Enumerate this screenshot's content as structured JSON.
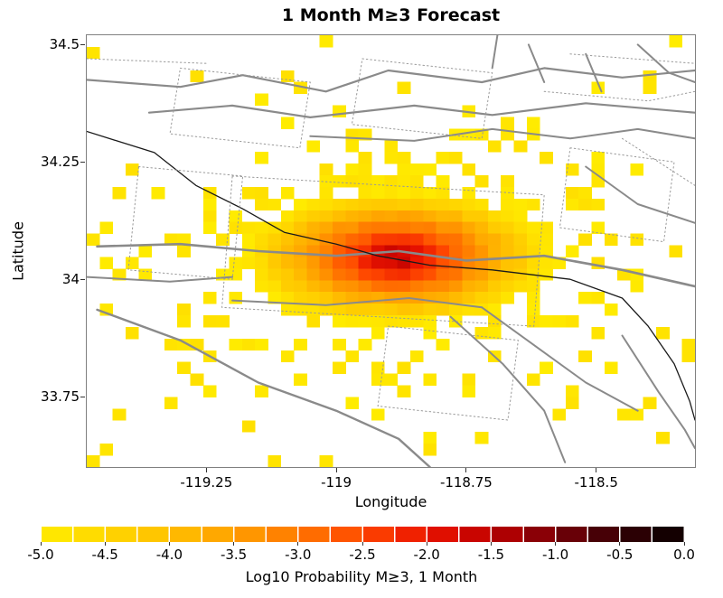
{
  "chart_data": {
    "type": "heatmap",
    "title": "1 Month M≥3 Forecast",
    "xlabel": "Longitude",
    "ylabel": "Latitude",
    "xlim": [
      -119.48,
      -118.31
    ],
    "ylim": [
      33.6,
      34.52
    ],
    "x_ticks": [
      -119.25,
      -119.0,
      -118.75,
      -118.5
    ],
    "x_tick_labels": [
      "-119.25",
      "-119",
      "-118.75",
      "-118.5"
    ],
    "y_ticks": [
      34.5,
      34.25,
      34.0,
      33.75
    ],
    "y_tick_labels": [
      "34.5",
      "34.25",
      "34",
      "33.75"
    ],
    "cell_deg": 0.025,
    "seed": 7,
    "vmin": -5,
    "vmax": 0,
    "hotspot": {
      "center_lon": -118.88,
      "center_lat": 34.045,
      "radius_lon": 0.3,
      "radius_lat": 0.145,
      "peak_log10p": -1.4,
      "falloff_range": 3.6
    },
    "scatter": {
      "radius_lon": 0.52,
      "radius_lat": 0.3,
      "base_p": 0.05,
      "halo_p": 0.55,
      "value_min": -5.0,
      "value_max": -4.7
    },
    "colormap": [
      {
        "v": -5.0,
        "c": [
          255,
          236,
          0
        ]
      },
      {
        "v": -4.5,
        "c": [
          255,
          215,
          0
        ]
      },
      {
        "v": -4.0,
        "c": [
          255,
          192,
          0
        ]
      },
      {
        "v": -3.5,
        "c": [
          255,
          160,
          0
        ]
      },
      {
        "v": -3.0,
        "c": [
          255,
          120,
          0
        ]
      },
      {
        "v": -2.5,
        "c": [
          255,
          72,
          0
        ]
      },
      {
        "v": -2.0,
        "c": [
          235,
          20,
          0
        ]
      },
      {
        "v": -1.5,
        "c": [
          190,
          0,
          0
        ]
      },
      {
        "v": -1.0,
        "c": [
          120,
          0,
          8
        ]
      },
      {
        "v": -0.5,
        "c": [
          55,
          0,
          5
        ]
      },
      {
        "v": 0.0,
        "c": [
          8,
          0,
          0
        ]
      }
    ],
    "colorbar": {
      "segments": 20,
      "vmin": -5,
      "vmax": 0,
      "ticks": [
        "-5.0",
        "-4.5",
        "-4.0",
        "-3.5",
        "-3.0",
        "-2.5",
        "-2.0",
        "-1.5",
        "-1.0",
        "-0.5",
        "0.0"
      ],
      "label": "Log10 Probability M≥3, 1 Month"
    },
    "map_lines": [
      {
        "style": "solid",
        "w": 2.2,
        "color": "#8a8a8a",
        "pts": [
          [
            -119.48,
            34.425
          ],
          [
            -119.3,
            34.41
          ],
          [
            -119.18,
            34.435
          ],
          [
            -119.02,
            34.4
          ],
          [
            -118.9,
            34.445
          ],
          [
            -118.72,
            34.42
          ],
          [
            -118.6,
            34.45
          ],
          [
            -118.45,
            34.43
          ],
          [
            -118.31,
            34.445
          ]
        ]
      },
      {
        "style": "solid",
        "w": 2.2,
        "color": "#8a8a8a",
        "pts": [
          [
            -119.36,
            34.355
          ],
          [
            -119.2,
            34.37
          ],
          [
            -119.05,
            34.345
          ],
          [
            -118.85,
            34.37
          ],
          [
            -118.7,
            34.35
          ],
          [
            -118.52,
            34.375
          ],
          [
            -118.31,
            34.355
          ]
        ]
      },
      {
        "style": "solid",
        "w": 2.0,
        "color": "#8a8a8a",
        "pts": [
          [
            -119.05,
            34.305
          ],
          [
            -118.85,
            34.295
          ],
          [
            -118.7,
            34.32
          ],
          [
            -118.55,
            34.3
          ],
          [
            -118.42,
            34.32
          ],
          [
            -118.31,
            34.3
          ]
        ]
      },
      {
        "style": "solid",
        "w": 2.6,
        "color": "#8a8a8a",
        "pts": [
          [
            -119.46,
            34.07
          ],
          [
            -119.3,
            34.075
          ],
          [
            -119.15,
            34.06
          ],
          [
            -119.0,
            34.05
          ],
          [
            -118.88,
            34.06
          ],
          [
            -118.75,
            34.04
          ],
          [
            -118.6,
            34.05
          ],
          [
            -118.45,
            34.02
          ],
          [
            -118.31,
            33.985
          ]
        ]
      },
      {
        "style": "solid",
        "w": 2.0,
        "color": "#8a8a8a",
        "pts": [
          [
            -119.48,
            34.005
          ],
          [
            -119.32,
            33.995
          ],
          [
            -119.2,
            34.005
          ]
        ]
      },
      {
        "style": "solid",
        "w": 2.0,
        "color": "#8a8a8a",
        "pts": [
          [
            -119.2,
            33.955
          ],
          [
            -119.02,
            33.945
          ],
          [
            -118.86,
            33.96
          ],
          [
            -118.72,
            33.94
          ]
        ]
      },
      {
        "style": "solid",
        "w": 2.4,
        "color": "#8a8a8a",
        "pts": [
          [
            -119.46,
            33.935
          ],
          [
            -119.3,
            33.87
          ],
          [
            -119.15,
            33.78
          ],
          [
            -119.0,
            33.72
          ],
          [
            -118.88,
            33.66
          ],
          [
            -118.82,
            33.6
          ]
        ]
      },
      {
        "style": "solid",
        "w": 2.0,
        "color": "#8a8a8a",
        "pts": [
          [
            -118.78,
            33.92
          ],
          [
            -118.68,
            33.82
          ],
          [
            -118.6,
            33.72
          ],
          [
            -118.56,
            33.61
          ]
        ]
      },
      {
        "style": "solid",
        "w": 2.0,
        "color": "#8a8a8a",
        "pts": [
          [
            -118.72,
            33.94
          ],
          [
            -118.62,
            33.86
          ],
          [
            -118.52,
            33.78
          ],
          [
            -118.42,
            33.72
          ]
        ]
      },
      {
        "style": "solid",
        "w": 2.0,
        "color": "#8a8a8a",
        "pts": [
          [
            -118.45,
            33.88
          ],
          [
            -118.38,
            33.76
          ],
          [
            -118.33,
            33.68
          ],
          [
            -118.31,
            33.64
          ]
        ]
      },
      {
        "style": "solid",
        "w": 2.0,
        "color": "#8a8a8a",
        "pts": [
          [
            -118.52,
            34.24
          ],
          [
            -118.42,
            34.16
          ],
          [
            -118.31,
            34.12
          ]
        ]
      },
      {
        "style": "solid",
        "w": 2.0,
        "color": "#8a8a8a",
        "pts": [
          [
            -118.63,
            34.5
          ],
          [
            -118.6,
            34.42
          ]
        ]
      },
      {
        "style": "solid",
        "w": 2.0,
        "color": "#8a8a8a",
        "pts": [
          [
            -118.52,
            34.48
          ],
          [
            -118.49,
            34.4
          ]
        ]
      },
      {
        "style": "solid",
        "w": 2.0,
        "color": "#8a8a8a",
        "pts": [
          [
            -118.42,
            34.5
          ],
          [
            -118.36,
            34.44
          ],
          [
            -118.31,
            34.42
          ]
        ]
      },
      {
        "style": "solid",
        "w": 2.0,
        "color": "#8a8a8a",
        "pts": [
          [
            -118.69,
            34.52
          ],
          [
            -118.7,
            34.45
          ]
        ]
      },
      {
        "style": "solid",
        "w": 1.3,
        "color": "#1a1a1a",
        "pts": [
          [
            -119.48,
            34.315
          ],
          [
            -119.35,
            34.27
          ],
          [
            -119.27,
            34.2
          ],
          [
            -119.18,
            34.15
          ],
          [
            -119.1,
            34.1
          ],
          [
            -119.0,
            34.075
          ],
          [
            -118.92,
            34.05
          ],
          [
            -118.82,
            34.03
          ],
          [
            -118.7,
            34.02
          ],
          [
            -118.55,
            34.0
          ],
          [
            -118.45,
            33.96
          ],
          [
            -118.4,
            33.9
          ],
          [
            -118.35,
            33.82
          ],
          [
            -118.32,
            33.74
          ],
          [
            -118.31,
            33.7
          ]
        ]
      },
      {
        "style": "dotted",
        "w": 1.0,
        "color": "#999999",
        "pts": [
          [
            -119.3,
            34.45
          ],
          [
            -119.05,
            34.42
          ],
          [
            -119.07,
            34.28
          ],
          [
            -119.32,
            34.31
          ],
          [
            -119.3,
            34.45
          ]
        ]
      },
      {
        "style": "dotted",
        "w": 1.0,
        "color": "#999999",
        "pts": [
          [
            -118.95,
            34.47
          ],
          [
            -118.7,
            34.44
          ],
          [
            -118.72,
            34.3
          ],
          [
            -118.97,
            34.33
          ],
          [
            -118.95,
            34.47
          ]
        ]
      },
      {
        "style": "dotted",
        "w": 1.0,
        "color": "#999999",
        "pts": [
          [
            -119.2,
            34.22
          ],
          [
            -118.6,
            34.18
          ],
          [
            -118.62,
            33.9
          ],
          [
            -119.22,
            33.94
          ],
          [
            -119.2,
            34.22
          ]
        ]
      },
      {
        "style": "dotted",
        "w": 1.0,
        "color": "#999999",
        "pts": [
          [
            -119.38,
            34.24
          ],
          [
            -119.18,
            34.22
          ],
          [
            -119.2,
            34.0
          ],
          [
            -119.4,
            34.02
          ],
          [
            -119.38,
            34.24
          ]
        ]
      },
      {
        "style": "dotted",
        "w": 1.0,
        "color": "#999999",
        "pts": [
          [
            -118.55,
            34.28
          ],
          [
            -118.35,
            34.25
          ],
          [
            -118.37,
            34.08
          ],
          [
            -118.57,
            34.11
          ],
          [
            -118.55,
            34.28
          ]
        ]
      },
      {
        "style": "dotted",
        "w": 1.0,
        "color": "#999999",
        "pts": [
          [
            -118.9,
            33.9
          ],
          [
            -118.65,
            33.87
          ],
          [
            -118.67,
            33.7
          ],
          [
            -118.92,
            33.73
          ],
          [
            -118.9,
            33.9
          ]
        ]
      },
      {
        "style": "dotted",
        "w": 1.0,
        "color": "#999999",
        "pts": [
          [
            -118.55,
            34.48
          ],
          [
            -118.31,
            34.46
          ]
        ]
      },
      {
        "style": "dotted",
        "w": 1.0,
        "color": "#999999",
        "pts": [
          [
            -119.48,
            34.47
          ],
          [
            -119.25,
            34.46
          ]
        ]
      },
      {
        "style": "dotted",
        "w": 1.0,
        "color": "#999999",
        "pts": [
          [
            -118.45,
            34.3
          ],
          [
            -118.31,
            34.2
          ]
        ]
      },
      {
        "style": "dotted",
        "w": 1.0,
        "color": "#999999",
        "pts": [
          [
            -118.6,
            34.4
          ],
          [
            -118.4,
            34.38
          ],
          [
            -118.31,
            34.4
          ]
        ]
      }
    ]
  }
}
